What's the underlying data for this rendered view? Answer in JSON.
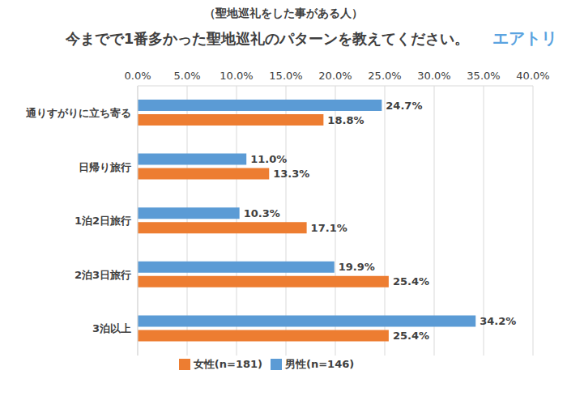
{
  "chart_data": {
    "type": "bar",
    "title": "今までで1番多かった聖地巡礼のパターンを教えてください。",
    "subtitle": "（聖地巡礼をした事がある人）",
    "annotations": [
      "エアトリ"
    ],
    "orientation": "horizontal",
    "categories": [
      "通りすがりに立ち寄る",
      "日帰り旅行",
      "1泊2日旅行",
      "2泊3日旅行",
      "3泊以上"
    ],
    "series": [
      {
        "name": "男性(n=146)",
        "color": "#5b9bd5",
        "values": [
          24.7,
          11.0,
          10.3,
          19.9,
          34.2
        ],
        "value_labels": [
          "24.7%",
          "11.0%",
          "10.3%",
          "19.9%",
          "34.2%"
        ]
      },
      {
        "name": "女性(n=181)",
        "color": "#ed7d31",
        "values": [
          18.8,
          13.3,
          17.1,
          25.4,
          25.4
        ],
        "value_labels": [
          "18.8%",
          "13.3%",
          "17.1%",
          "25.4%",
          "25.4%"
        ]
      }
    ],
    "xlim": [
      0,
      40
    ],
    "xticks": [
      {
        "value": 0,
        "label": "0.0%"
      },
      {
        "value": 5,
        "label": "5.0%"
      },
      {
        "value": 10,
        "label": "10.0%"
      },
      {
        "value": 15,
        "label": "15.0%"
      },
      {
        "value": 20,
        "label": "20.0%"
      },
      {
        "value": 25,
        "label": "25.0%"
      },
      {
        "value": 30,
        "label": "30.0%"
      },
      {
        "value": 35,
        "label": "35.0%"
      },
      {
        "value": 40,
        "label": "40.0%"
      }
    ],
    "grid": true,
    "legend": "bottom",
    "data_labels": true
  }
}
